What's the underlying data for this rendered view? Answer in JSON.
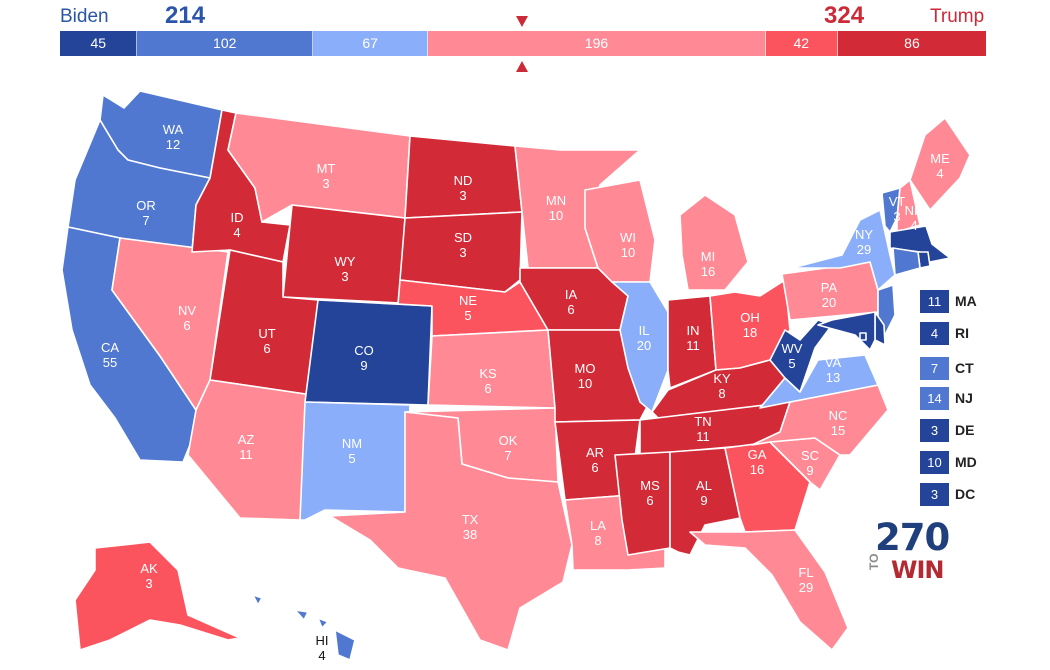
{
  "colors": {
    "dem_safe": "#24449a",
    "dem_likely": "#5078d0",
    "dem_lean": "#8aaefa",
    "gop_lean": "#ff8a96",
    "gop_likely": "#fc545f",
    "gop_safe": "#d22a36"
  },
  "header": {
    "dem_name": "Biden",
    "dem_total": "214",
    "gop_name": "Trump",
    "gop_total": "324",
    "segments": [
      {
        "value": "45",
        "rating": "dem_safe"
      },
      {
        "value": "102",
        "rating": "dem_likely"
      },
      {
        "value": "67",
        "rating": "dem_lean"
      },
      {
        "value": "196",
        "rating": "gop_lean"
      },
      {
        "value": "42",
        "rating": "gop_likely"
      },
      {
        "value": "86",
        "rating": "gop_safe"
      }
    ]
  },
  "states": {
    "WA": {
      "abbr": "WA",
      "ev": "12",
      "rating": "dem_likely"
    },
    "OR": {
      "abbr": "OR",
      "ev": "7",
      "rating": "dem_likely"
    },
    "CA": {
      "abbr": "CA",
      "ev": "55",
      "rating": "dem_likely"
    },
    "NV": {
      "abbr": "NV",
      "ev": "6",
      "rating": "gop_lean"
    },
    "ID": {
      "abbr": "ID",
      "ev": "4",
      "rating": "gop_safe"
    },
    "MT": {
      "abbr": "MT",
      "ev": "3",
      "rating": "gop_lean"
    },
    "WY": {
      "abbr": "WY",
      "ev": "3",
      "rating": "gop_safe"
    },
    "UT": {
      "abbr": "UT",
      "ev": "6",
      "rating": "gop_safe"
    },
    "AZ": {
      "abbr": "AZ",
      "ev": "11",
      "rating": "gop_lean"
    },
    "CO": {
      "abbr": "CO",
      "ev": "9",
      "rating": "dem_safe"
    },
    "NM": {
      "abbr": "NM",
      "ev": "5",
      "rating": "dem_lean"
    },
    "ND": {
      "abbr": "ND",
      "ev": "3",
      "rating": "gop_safe"
    },
    "SD": {
      "abbr": "SD",
      "ev": "3",
      "rating": "gop_safe"
    },
    "NE": {
      "abbr": "NE",
      "ev": "5",
      "rating": "gop_likely"
    },
    "KS": {
      "abbr": "KS",
      "ev": "6",
      "rating": "gop_lean"
    },
    "OK": {
      "abbr": "OK",
      "ev": "7",
      "rating": "gop_lean"
    },
    "TX": {
      "abbr": "TX",
      "ev": "38",
      "rating": "gop_lean"
    },
    "MN": {
      "abbr": "MN",
      "ev": "10",
      "rating": "gop_lean"
    },
    "IA": {
      "abbr": "IA",
      "ev": "6",
      "rating": "gop_safe"
    },
    "MO": {
      "abbr": "MO",
      "ev": "10",
      "rating": "gop_safe"
    },
    "AR": {
      "abbr": "AR",
      "ev": "6",
      "rating": "gop_safe"
    },
    "LA": {
      "abbr": "LA",
      "ev": "8",
      "rating": "gop_lean"
    },
    "WI": {
      "abbr": "WI",
      "ev": "10",
      "rating": "gop_lean"
    },
    "IL": {
      "abbr": "IL",
      "ev": "20",
      "rating": "dem_lean"
    },
    "MI": {
      "abbr": "MI",
      "ev": "16",
      "rating": "gop_lean"
    },
    "IN": {
      "abbr": "IN",
      "ev": "11",
      "rating": "gop_safe"
    },
    "OH": {
      "abbr": "OH",
      "ev": "18",
      "rating": "gop_likely"
    },
    "KY": {
      "abbr": "KY",
      "ev": "8",
      "rating": "gop_safe"
    },
    "TN": {
      "abbr": "TN",
      "ev": "11",
      "rating": "gop_safe"
    },
    "MS": {
      "abbr": "MS",
      "ev": "6",
      "rating": "gop_safe"
    },
    "AL": {
      "abbr": "AL",
      "ev": "9",
      "rating": "gop_safe"
    },
    "GA": {
      "abbr": "GA",
      "ev": "16",
      "rating": "gop_likely"
    },
    "FL": {
      "abbr": "FL",
      "ev": "29",
      "rating": "gop_lean"
    },
    "SC": {
      "abbr": "SC",
      "ev": "9",
      "rating": "gop_lean"
    },
    "NC": {
      "abbr": "NC",
      "ev": "15",
      "rating": "gop_lean"
    },
    "VA": {
      "abbr": "VA",
      "ev": "13",
      "rating": "dem_lean"
    },
    "WV": {
      "abbr": "WV",
      "ev": "5",
      "rating": "dem_safe"
    },
    "PA": {
      "abbr": "PA",
      "ev": "20",
      "rating": "gop_lean"
    },
    "NY": {
      "abbr": "NY",
      "ev": "29",
      "rating": "dem_lean"
    },
    "VT": {
      "abbr": "VT",
      "ev": "3",
      "rating": "dem_likely"
    },
    "NH": {
      "abbr": "NH",
      "ev": "4",
      "rating": "gop_lean"
    },
    "ME": {
      "abbr": "ME",
      "ev": "4",
      "rating": "gop_lean"
    },
    "AK": {
      "abbr": "AK",
      "ev": "3",
      "rating": "gop_likely"
    },
    "HI": {
      "abbr": "HI",
      "ev": "4",
      "rating": "dem_likely"
    },
    "MA": {
      "abbr": "MA",
      "ev": "11",
      "rating": "dem_safe"
    },
    "RI": {
      "abbr": "RI",
      "ev": "4",
      "rating": "dem_safe"
    },
    "CT": {
      "abbr": "CT",
      "ev": "7",
      "rating": "dem_likely"
    },
    "NJ": {
      "abbr": "NJ",
      "ev": "14",
      "rating": "dem_likely"
    },
    "DE": {
      "abbr": "DE",
      "ev": "3",
      "rating": "dem_safe"
    },
    "MD": {
      "abbr": "MD",
      "ev": "10",
      "rating": "dem_safe"
    },
    "DC": {
      "abbr": "DC",
      "ev": "3",
      "rating": "dem_safe"
    }
  },
  "small_states": [
    {
      "abbr": "MA",
      "ev": "11",
      "rating": "dem_safe"
    },
    {
      "abbr": "RI",
      "ev": "4",
      "rating": "dem_safe"
    },
    {
      "abbr": "CT",
      "ev": "7",
      "rating": "dem_likely"
    },
    {
      "abbr": "NJ",
      "ev": "14",
      "rating": "dem_likely"
    },
    {
      "abbr": "DE",
      "ev": "3",
      "rating": "dem_safe"
    },
    {
      "abbr": "MD",
      "ev": "10",
      "rating": "dem_safe"
    },
    {
      "abbr": "DC",
      "ev": "3",
      "rating": "dem_safe"
    }
  ],
  "logo": {
    "number": "270",
    "to": "TO",
    "win": "WIN"
  }
}
